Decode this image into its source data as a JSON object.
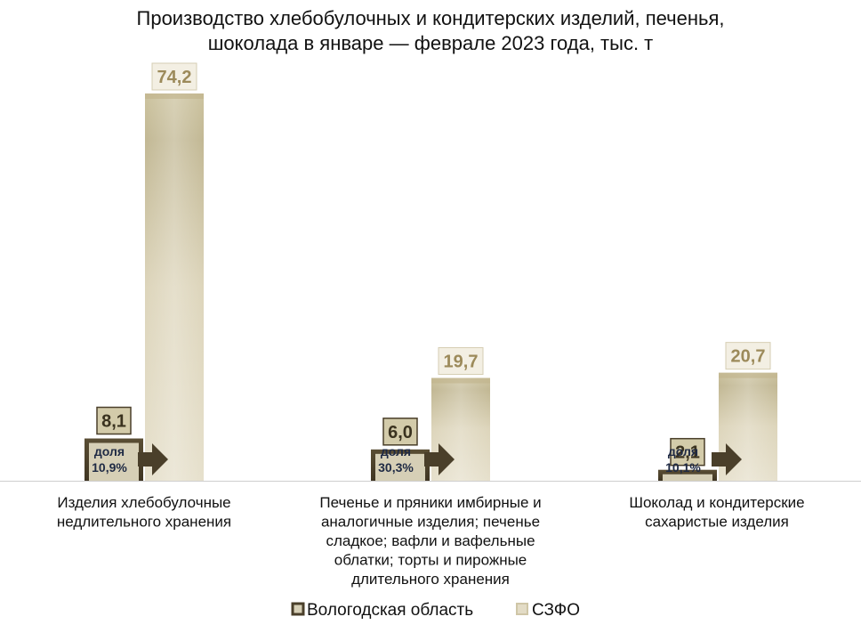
{
  "chart_data": {
    "type": "bar",
    "title": "Производство хлебобулочных и кондитерских изделий, печенья, шоколада в январе — феврале 2023 года, тыс. т",
    "title_lines": [
      "Производство хлебобулочных и кондитерских изделий, печенья,",
      "шоколада в январе — феврале 2023 года, тыс. т"
    ],
    "categories": [
      "Изделия хлебобулочные недлительного хранения",
      "Печенье и пряники имбирные и аналогичные изделия; печенье сладкое; вафли и вафельные облатки; торты и пирожные длительного хранения",
      "Шоколад и кондитерские сахаристые изделия"
    ],
    "category_lines": [
      [
        "Изделия хлебобулочные",
        "недлительного хранения"
      ],
      [
        "Печенье и пряники имбирные и",
        "аналогичные изделия; печенье",
        "сладкое; вафли и вафельные",
        "облатки; торты и пирожные",
        "длительного хранения"
      ],
      [
        "Шоколад и кондитерские",
        "сахаристые изделия"
      ]
    ],
    "series": [
      {
        "name": "Вологодская область",
        "values": [
          8.1,
          6.0,
          2.1
        ],
        "labels": [
          "8,1",
          "6,0",
          "2,1"
        ],
        "color": "#4a3f2a"
      },
      {
        "name": "СЗФО",
        "values": [
          74.2,
          19.7,
          20.7
        ],
        "labels": [
          "74,2",
          "19,7",
          "20,7"
        ],
        "color": "#d8d0b4"
      }
    ],
    "share_label": "доля",
    "shares": [
      "10,9%",
      "30,3%",
      "10,1%"
    ],
    "ylim": [
      0,
      80
    ],
    "grid": false,
    "legend_position": "bottom",
    "colors": {
      "region_dark": "#4a3f2a",
      "szfo_light": "#d8d0b4",
      "label_text": "#9c8a5a",
      "label_text_dark": "#3a321f",
      "arrow": "#4a3f2a"
    }
  }
}
